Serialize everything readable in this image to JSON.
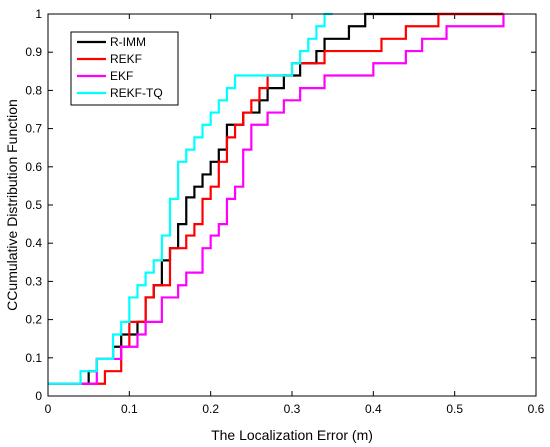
{
  "chart_data": {
    "type": "line",
    "step": true,
    "xlabel": "The Localization Error (m)",
    "ylabel": "CCumulative Distribution Function",
    "xlim": [
      0,
      0.6
    ],
    "ylim": [
      0,
      1
    ],
    "xticks": [
      "0",
      "0.1",
      "0.2",
      "0.3",
      "0.4",
      "0.5",
      "0.6"
    ],
    "yticks": [
      "0",
      "0.1",
      "0.2",
      "0.3",
      "0.4",
      "0.5",
      "0.6",
      "0.7",
      "0.8",
      "0.9",
      "1"
    ],
    "grid": false,
    "legend_position": "top-left",
    "series": [
      {
        "name": "R-IMM",
        "color": "#000000",
        "x": [
          0,
          0.05,
          0.06,
          0.08,
          0.09,
          0.11,
          0.12,
          0.13,
          0.14,
          0.15,
          0.16,
          0.17,
          0.18,
          0.19,
          0.2,
          0.21,
          0.22,
          0.24,
          0.26,
          0.27,
          0.29,
          0.31,
          0.33,
          0.34,
          0.37,
          0.39,
          0.45,
          0.52,
          0.56
        ],
        "y": [
          0.032,
          0.065,
          0.097,
          0.129,
          0.161,
          0.194,
          0.258,
          0.29,
          0.355,
          0.387,
          0.45,
          0.52,
          0.548,
          0.58,
          0.613,
          0.645,
          0.71,
          0.742,
          0.774,
          0.806,
          0.839,
          0.871,
          0.903,
          0.935,
          0.968,
          1.0,
          1.0,
          1.0,
          1.0
        ]
      },
      {
        "name": "REKF",
        "color": "#ff0000",
        "x": [
          0,
          0.07,
          0.09,
          0.1,
          0.12,
          0.13,
          0.15,
          0.17,
          0.18,
          0.19,
          0.2,
          0.21,
          0.22,
          0.23,
          0.24,
          0.25,
          0.26,
          0.27,
          0.3,
          0.34,
          0.41,
          0.44,
          0.48,
          0.56
        ],
        "y": [
          0.032,
          0.065,
          0.129,
          0.194,
          0.258,
          0.29,
          0.387,
          0.42,
          0.45,
          0.516,
          0.548,
          0.613,
          0.677,
          0.71,
          0.742,
          0.774,
          0.806,
          0.839,
          0.871,
          0.903,
          0.935,
          0.968,
          1.0,
          1.0
        ]
      },
      {
        "name": "EKF",
        "color": "#ff00ff",
        "x": [
          0,
          0.06,
          0.09,
          0.11,
          0.12,
          0.14,
          0.16,
          0.17,
          0.19,
          0.2,
          0.21,
          0.22,
          0.23,
          0.24,
          0.25,
          0.27,
          0.29,
          0.31,
          0.34,
          0.4,
          0.44,
          0.46,
          0.49,
          0.56
        ],
        "y": [
          0.032,
          0.097,
          0.129,
          0.161,
          0.194,
          0.258,
          0.29,
          0.323,
          0.387,
          0.42,
          0.45,
          0.516,
          0.548,
          0.645,
          0.71,
          0.742,
          0.774,
          0.806,
          0.839,
          0.871,
          0.903,
          0.935,
          0.968,
          1.0
        ]
      },
      {
        "name": "REKF-TQ",
        "color": "#00ffff",
        "x": [
          0,
          0.04,
          0.06,
          0.08,
          0.09,
          0.1,
          0.11,
          0.12,
          0.13,
          0.14,
          0.15,
          0.16,
          0.17,
          0.18,
          0.19,
          0.2,
          0.21,
          0.22,
          0.23,
          0.3,
          0.31,
          0.32,
          0.33,
          0.34,
          0.35
        ],
        "y": [
          0.032,
          0.065,
          0.097,
          0.161,
          0.194,
          0.258,
          0.29,
          0.323,
          0.355,
          0.42,
          0.516,
          0.613,
          0.645,
          0.677,
          0.71,
          0.742,
          0.774,
          0.806,
          0.839,
          0.871,
          0.903,
          0.935,
          0.968,
          1.0,
          1.0
        ]
      }
    ]
  }
}
